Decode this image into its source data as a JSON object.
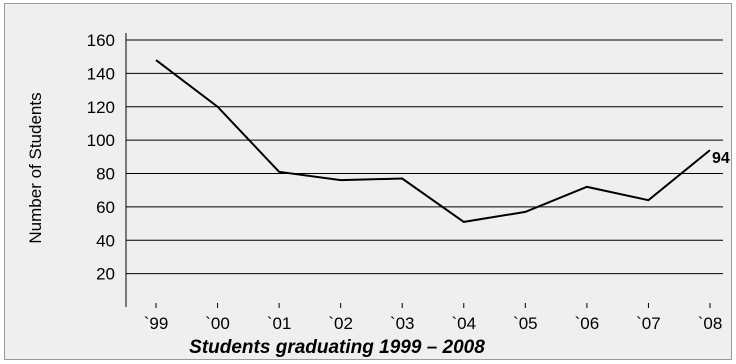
{
  "chart_data": {
    "type": "line",
    "title": "",
    "xlabel": "Students graduating 1999 – 2008",
    "ylabel": "Number of Students",
    "categories": [
      "`99",
      "`00",
      "`01",
      "`02",
      "`03",
      "`04",
      "`05",
      "`06",
      "`07",
      "`08"
    ],
    "series": [
      {
        "values": [
          148,
          120,
          81,
          76,
          77,
          51,
          57,
          72,
          64,
          94
        ]
      }
    ],
    "y_ticks": [
      20,
      40,
      60,
      80,
      100,
      120,
      140,
      160
    ],
    "ylim": [
      0,
      165
    ],
    "grid": true,
    "data_labels": [
      {
        "index": 9,
        "text": "94"
      }
    ],
    "colors": {
      "background": "#efefef",
      "line": "#000000",
      "grid": "#000000",
      "border": "#9a9a9a"
    }
  }
}
